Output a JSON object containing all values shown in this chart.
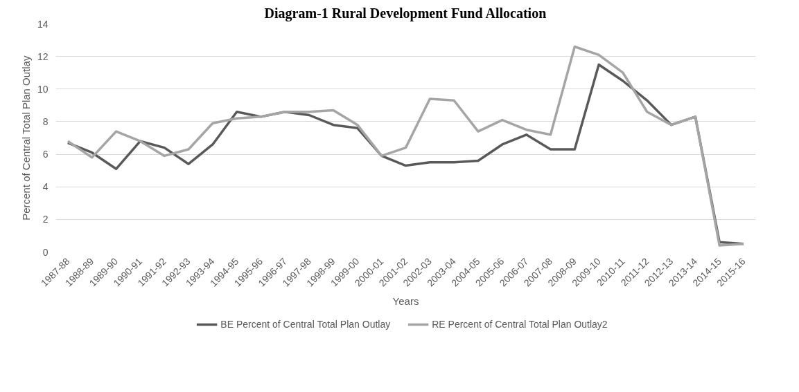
{
  "chart_data": {
    "type": "line",
    "title": "Diagram-1 Rural Development Fund Allocation",
    "xlabel": "Years",
    "ylabel": "Percent of Central Total Plan Outlay",
    "categories": [
      "1987-88",
      "1988-89",
      "1989-90",
      "1990-91",
      "1991-92",
      "1992-93",
      "1993-94",
      "1994-95",
      "1995-96",
      "1996-97",
      "1997-98",
      "1998-99",
      "1999-00",
      "2000-01",
      "2001-02",
      "2002-03",
      "2003-04",
      "2004-05",
      "2005-06",
      "2006-07",
      "2007-08",
      "2008-09",
      "2009-10",
      "2010-11",
      "2011-12",
      "2012-13",
      "2013-14",
      "2014-15",
      "2015-16"
    ],
    "series": [
      {
        "name": "BE Percent of Central Total Plan Outlay",
        "color": "#595959",
        "values": [
          6.7,
          6.1,
          5.1,
          6.8,
          6.4,
          5.4,
          6.6,
          8.6,
          8.3,
          8.6,
          8.4,
          7.8,
          7.6,
          5.9,
          5.3,
          5.5,
          5.5,
          5.6,
          6.6,
          7.2,
          6.3,
          6.3,
          11.5,
          10.5,
          9.3,
          7.8,
          8.3,
          0.6,
          0.5
        ]
      },
      {
        "name": "RE Percent of Central Total Plan Outlay2",
        "color": "#a5a5a5",
        "values": [
          6.8,
          5.8,
          7.4,
          6.8,
          5.9,
          6.3,
          7.9,
          8.2,
          8.3,
          8.6,
          8.6,
          8.7,
          7.8,
          5.9,
          6.4,
          9.4,
          9.3,
          7.4,
          8.1,
          7.5,
          7.2,
          12.6,
          12.1,
          11.0,
          8.6,
          7.8,
          8.3,
          0.4,
          0.5
        ]
      }
    ],
    "ylim": [
      0,
      14
    ],
    "yticks": [
      0,
      2,
      4,
      6,
      8,
      10,
      12,
      14
    ],
    "grid": "y",
    "legend": "bottom",
    "marker": "none",
    "line_style": "solid"
  }
}
